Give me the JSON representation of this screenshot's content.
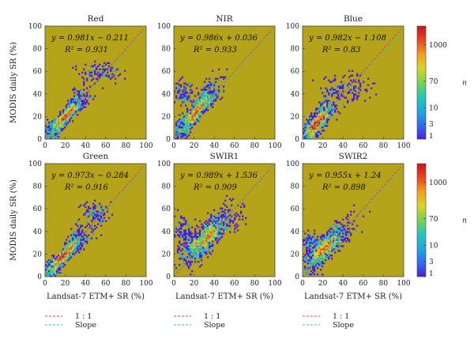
{
  "chart_data": [
    {
      "type": "scatter",
      "title": "Red",
      "equation": "y = 0.981x − 0.211",
      "r2": "R² = 0.931",
      "slope": 0.981,
      "intercept": -0.211,
      "xlim": [
        0,
        100
      ],
      "ylim": [
        0,
        100
      ],
      "xticks": [
        "0",
        "20",
        "40",
        "60",
        "80",
        "100"
      ],
      "yticks": [
        "0",
        "20",
        "40",
        "60",
        "80",
        "100"
      ]
    },
    {
      "type": "scatter",
      "title": "NIR",
      "equation": "y = 0.986x + 0.036",
      "r2": "R² = 0.933",
      "slope": 0.986,
      "intercept": 0.036,
      "xlim": [
        0,
        100
      ],
      "ylim": [
        0,
        100
      ],
      "xticks": [
        "0",
        "20",
        "40",
        "60",
        "80",
        "100"
      ],
      "yticks": [
        "0",
        "20",
        "40",
        "60",
        "80",
        "100"
      ]
    },
    {
      "type": "scatter",
      "title": "Blue",
      "equation": "y = 0.982x − 1.108",
      "r2": "R² = 0.83",
      "slope": 0.982,
      "intercept": -1.108,
      "xlim": [
        0,
        100
      ],
      "ylim": [
        0,
        100
      ],
      "xticks": [
        "0",
        "20",
        "40",
        "60",
        "80",
        "100"
      ],
      "yticks": [
        "0",
        "20",
        "40",
        "60",
        "80",
        "100"
      ]
    },
    {
      "type": "scatter",
      "title": "Green",
      "equation": "y = 0.973x − 0.284",
      "r2": "R² = 0.916",
      "slope": 0.973,
      "intercept": -0.284,
      "xlim": [
        0,
        100
      ],
      "ylim": [
        0,
        100
      ],
      "xticks": [
        "0",
        "20",
        "40",
        "60",
        "80",
        "100"
      ],
      "yticks": [
        "0",
        "20",
        "40",
        "60",
        "80",
        "100"
      ]
    },
    {
      "type": "scatter",
      "title": "SWIR1",
      "equation": "y = 0.989x + 1.536",
      "r2": "R² = 0.909",
      "slope": 0.989,
      "intercept": 1.536,
      "xlim": [
        0,
        100
      ],
      "ylim": [
        0,
        100
      ],
      "xticks": [
        "0",
        "20",
        "40",
        "60",
        "80",
        "100"
      ],
      "yticks": [
        "0",
        "20",
        "40",
        "60",
        "80",
        "100"
      ]
    },
    {
      "type": "scatter",
      "title": "SWIR2",
      "equation": "y = 0.955x + 1.24",
      "r2": "R² = 0.898",
      "slope": 0.955,
      "intercept": 1.24,
      "xlim": [
        0,
        100
      ],
      "ylim": [
        0,
        100
      ],
      "xticks": [
        "0",
        "20",
        "40",
        "60",
        "80",
        "100"
      ],
      "yticks": [
        "0",
        "20",
        "40",
        "60",
        "80",
        "100"
      ]
    }
  ],
  "labels": {
    "ylabel": "MODIS daily SR (%)",
    "xlabel": "Landsat-7 ETM+ SR (%)"
  },
  "colorbar": {
    "title": "n",
    "ticks": [
      "1",
      "3",
      "10",
      "70",
      "1000"
    ],
    "tick_values": [
      1,
      3,
      10,
      70,
      1000
    ],
    "max_value": 4000
  },
  "legend": {
    "items": [
      {
        "label": "1 : 1",
        "color": "#e8453c"
      },
      {
        "label": "Slope",
        "color": "#3fbf9f"
      }
    ]
  },
  "colors": {
    "plot_background": "#b5a41a",
    "one_to_one_line": "#e8453c",
    "slope_line": "#3fbf9f",
    "colormap": [
      "#4b1fd9",
      "#2f6df0",
      "#1ea8e0",
      "#25c6b8",
      "#78d250",
      "#d8d428",
      "#f0a020",
      "#e84820",
      "#c8141e"
    ]
  }
}
